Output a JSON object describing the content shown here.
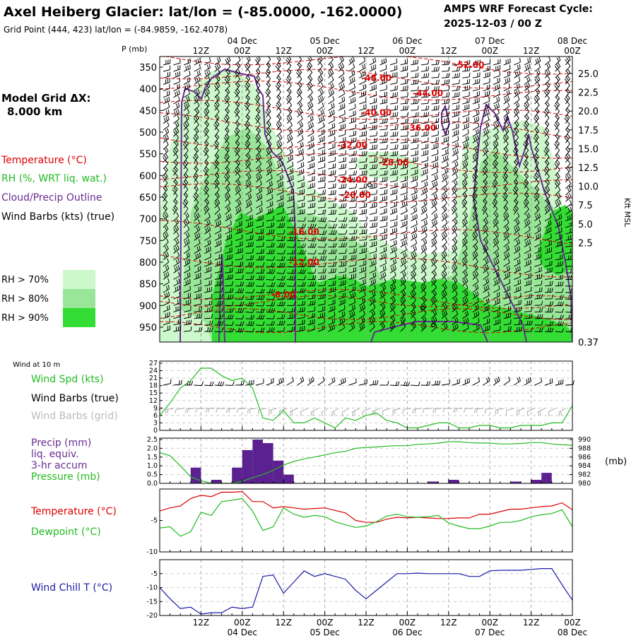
{
  "header": {
    "title": "Axel Heiberg Glacier:  lat/lon = (-85.0000, -162.0000)",
    "grid_point": "Grid Point (444, 423) lat/lon = (-84.9859, -162.4078)",
    "cycle_line1": "AMPS WRF Forecast Cycle:",
    "cycle_line2": "2025-12-03 / 00  Z"
  },
  "legend": {
    "model_grid_label": "Model Grid ΔX:",
    "model_grid_value": "8.000 km",
    "temperature": "Temperature (°C)",
    "rh": "RH (%, WRT liq. wat.)",
    "cloud": "Cloud/Precip Outline",
    "wind": "Wind Barbs (kts) (true)",
    "rh70": "RH > 70%",
    "rh80": "RH > 80%",
    "rh90": "RH > 90%"
  },
  "colors": {
    "temperature": "#e00000",
    "rh70": "#ccf8cc",
    "rh80": "#99e699",
    "rh90": "#33dd33",
    "cloud": "#6a2c91",
    "precip": "#5c2191",
    "pressure": "#22bb22",
    "windchill": "#1a1aa6"
  },
  "time_axis": {
    "top_labels": [
      "04 Dec",
      "05 Dec",
      "06 Dec",
      "07 Dec",
      "08 Dec"
    ],
    "hour_labels": [
      "12Z",
      "00Z",
      "12Z",
      "00Z",
      "12Z",
      "00Z",
      "12Z",
      "00Z",
      "12Z",
      "00Z"
    ],
    "bottom_hour_labels": [
      "12Z",
      "00Z",
      "12Z",
      "00Z",
      "12Z",
      "00Z",
      "12Z",
      "00Z",
      "12Z",
      "00Z"
    ],
    "bottom_day_labels": [
      "04 Dec",
      "05 Dec",
      "06 Dec",
      "07 Dec",
      "08 Dec"
    ]
  },
  "chart_data": [
    {
      "type": "area",
      "name": "vertical-cross-section",
      "ylabel": "P (mb)",
      "y2label": "Kft MSL",
      "pressure_ticks": [
        "350",
        "400",
        "450",
        "500",
        "550",
        "600",
        "650",
        "700",
        "750",
        "800",
        "850",
        "900",
        "950"
      ],
      "height_ticks": [
        "25.0",
        "22.5",
        "20.0",
        "17.5",
        "15.0",
        "12.5",
        "10.0",
        "7.5",
        "5.0",
        "2.5",
        "0.37"
      ],
      "isotherm_labels": [
        {
          "text": "-52.00",
          "p": 345,
          "hour": 90
        },
        {
          "text": "-48.00",
          "p": 375,
          "hour": 63
        },
        {
          "text": "-44.00",
          "p": 410,
          "hour": 78
        },
        {
          "text": "-40.00",
          "p": 455,
          "hour": 63
        },
        {
          "text": "-36.00",
          "p": 490,
          "hour": 76
        },
        {
          "text": "-32.00",
          "p": 530,
          "hour": 56
        },
        {
          "text": "-28.00",
          "p": 570,
          "hour": 68
        },
        {
          "text": "-24.00",
          "p": 610,
          "hour": 56
        },
        {
          "text": "-20.00",
          "p": 645,
          "hour": 57
        },
        {
          "text": "-16.00",
          "p": 730,
          "hour": 42
        },
        {
          "text": "-12.00",
          "p": 800,
          "hour": 42
        },
        {
          "text": "-8.00",
          "p": 875,
          "hour": 36
        }
      ]
    },
    {
      "type": "line",
      "name": "wind-at-10m",
      "title": "Wind at 10 m",
      "label_speed": "Wind Spd (kts)",
      "label_barbs_true": "Wind Barbs (true)",
      "label_barbs_grid": "Wind Barbs (grid)",
      "yticks": [
        "27",
        "24",
        "21",
        "18",
        "15",
        "12",
        "9",
        "6",
        "3",
        "0"
      ],
      "ylim": [
        0,
        27
      ],
      "hours": [
        0,
        3,
        6,
        9,
        12,
        15,
        18,
        21,
        24,
        27,
        30,
        33,
        36,
        39,
        42,
        45,
        48,
        51,
        54,
        57,
        60,
        63,
        66,
        69,
        72,
        75,
        78,
        81,
        84,
        87,
        90,
        93,
        96,
        99,
        102,
        105,
        108,
        111,
        114,
        117,
        120
      ],
      "speed": [
        6,
        11,
        17,
        20,
        25,
        25,
        22,
        20,
        21,
        17,
        5,
        4,
        8,
        3,
        3,
        5,
        3,
        1,
        5,
        4,
        6,
        7,
        4,
        3,
        1,
        1,
        2,
        3,
        3,
        1,
        1,
        2,
        2,
        1,
        1,
        2,
        2,
        2,
        3,
        3,
        10
      ]
    },
    {
      "type": "bar",
      "name": "precip-pressure",
      "label_precip": "Precip (mm)",
      "label_liq": "liq. equiv.",
      "label_accum": "3-hr accum",
      "label_pressure": "Pressure (mb)",
      "y2unit": "(mb)",
      "yticks": [
        "2.5",
        "2.0",
        "1.5",
        "1.0",
        "0.5",
        "0.0"
      ],
      "y2ticks": [
        "990",
        "988",
        "986",
        "984",
        "982",
        "980"
      ],
      "ylim": [
        0,
        2.5
      ],
      "y2lim": [
        980,
        990
      ],
      "precip_hours": [
        12,
        18,
        24,
        27,
        30,
        33,
        36
      ],
      "precip": [
        0.9,
        0.2,
        0.9,
        1.9,
        2.5,
        2.3,
        1.3
      ],
      "precip_hours_2": [
        39,
        81,
        87,
        105,
        111,
        114
      ],
      "precip_2": [
        0.5,
        0.1,
        0.2,
        0.1,
        0.2,
        0.6
      ],
      "pressure_hours": [
        0,
        3,
        6,
        9,
        12,
        15,
        18,
        21,
        24,
        27,
        30,
        33,
        36,
        39,
        42,
        45,
        48,
        51,
        54,
        57,
        60,
        63,
        66,
        69,
        72,
        75,
        78,
        81,
        84,
        87,
        90,
        93,
        96,
        99,
        102,
        105,
        108,
        111,
        114,
        117,
        120
      ],
      "pressure": [
        987,
        986.3,
        984,
        981.5,
        980.6,
        980,
        980,
        980,
        980.5,
        981.3,
        982,
        983,
        984.2,
        985,
        985.6,
        986,
        986.5,
        987,
        987.3,
        988,
        988.2,
        988.3,
        988.5,
        988.6,
        988.6,
        988.9,
        989,
        989.2,
        989.5,
        989.5,
        989.3,
        989.2,
        989.2,
        989,
        989,
        989.1,
        989.3,
        989.3,
        989,
        988.8,
        988.7
      ]
    },
    {
      "type": "line",
      "name": "temperature-dewpoint",
      "label_temp": "Temperature (°C)",
      "label_dew": "Dewpoint (°C)",
      "yticks": [
        "-5",
        "-10"
      ],
      "ylim": [
        -10,
        0
      ],
      "hours": [
        0,
        3,
        6,
        9,
        12,
        15,
        18,
        21,
        24,
        27,
        30,
        33,
        36,
        39,
        42,
        45,
        48,
        51,
        54,
        57,
        60,
        63,
        66,
        69,
        72,
        75,
        78,
        81,
        84,
        87,
        90,
        93,
        96,
        99,
        102,
        105,
        108,
        111,
        114,
        117,
        120
      ],
      "temperature": [
        -3.5,
        -3.0,
        -2.7,
        -1.5,
        -1.0,
        -1.2,
        -0.5,
        -0.5,
        -0.4,
        -2.0,
        -2.0,
        -3.0,
        -2.8,
        -3.0,
        -3.2,
        -3.1,
        -3.0,
        -3.4,
        -3.8,
        -5.0,
        -5.3,
        -5.3,
        -4.8,
        -4.5,
        -4.6,
        -4.5,
        -4.6,
        -4.7,
        -4.7,
        -4.6,
        -4.6,
        -4.0,
        -4.0,
        -3.6,
        -3.2,
        -3.2,
        -3.0,
        -2.8,
        -2.7,
        -2.2,
        -3.3
      ],
      "dewpoint": [
        -6.2,
        -6.0,
        -7.5,
        -6.8,
        -3.7,
        -4.2,
        -2.0,
        -1.8,
        -1.5,
        -3.5,
        -6.6,
        -6.0,
        -3.0,
        -4.0,
        -4.5,
        -4.2,
        -4.4,
        -5.2,
        -5.7,
        -6.1,
        -5.9,
        -5.2,
        -4.3,
        -4.0,
        -4.4,
        -4.5,
        -4.4,
        -4.2,
        -5.4,
        -5.9,
        -6.3,
        -6.3,
        -5.9,
        -5.3,
        -5.3,
        -5.0,
        -4.4,
        -4.1,
        -3.9,
        -3.3,
        -6.0
      ]
    },
    {
      "type": "line",
      "name": "wind-chill",
      "label": "Wind Chill T (°C)",
      "yticks": [
        "-5",
        "-10",
        "-15",
        "-20"
      ],
      "ylim": [
        -20,
        0
      ],
      "hours": [
        0,
        3,
        6,
        9,
        12,
        15,
        18,
        21,
        24,
        27,
        30,
        33,
        36,
        39,
        42,
        45,
        48,
        51,
        54,
        57,
        60,
        63,
        66,
        69,
        72,
        75,
        78,
        81,
        84,
        87,
        90,
        93,
        96,
        99,
        102,
        105,
        108,
        111,
        114,
        117,
        120
      ],
      "windchill": [
        -10,
        -14,
        -17.5,
        -17,
        -19.5,
        -19,
        -19,
        -17,
        -17.5,
        -17,
        -6,
        -5.5,
        -12,
        -8,
        -4,
        -6,
        -5,
        -6,
        -7,
        -11,
        -14,
        -11,
        -8,
        -5,
        -5,
        -4.8,
        -5,
        -5,
        -5,
        -5,
        -6,
        -6,
        -4,
        -3.8,
        -3.8,
        -3.8,
        -3.5,
        -3.2,
        -3.2,
        -9,
        -14.5
      ]
    }
  ]
}
